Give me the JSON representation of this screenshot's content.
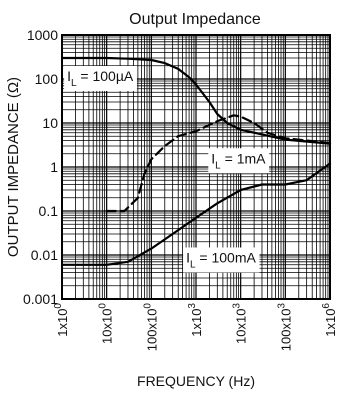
{
  "chart_data": {
    "type": "line",
    "title": "Output Impedance",
    "xlabel": "FREQUENCY (Hz)",
    "ylabel": "OUTPUT IMPEDANCE (Ω)",
    "x_scale": "log",
    "y_scale": "log",
    "xlim": [
      1,
      1000000
    ],
    "ylim": [
      0.001,
      1000
    ],
    "grid": true,
    "x_ticks": [
      {
        "value": 1,
        "base": "1x10",
        "exp": "0"
      },
      {
        "value": 10,
        "base": "10x10",
        "exp": "0"
      },
      {
        "value": 100,
        "base": "100x10",
        "exp": "0"
      },
      {
        "value": 1000,
        "base": "1x10",
        "exp": "3"
      },
      {
        "value": 10000,
        "base": "10x10",
        "exp": "3"
      },
      {
        "value": 100000,
        "base": "100x10",
        "exp": "3"
      },
      {
        "value": 1000000,
        "base": "1x10",
        "exp": "6"
      }
    ],
    "y_ticks": [
      {
        "value": 1000,
        "label": "1000"
      },
      {
        "value": 100,
        "label": "100"
      },
      {
        "value": 10,
        "label": "10"
      },
      {
        "value": 1,
        "label": "1"
      },
      {
        "value": 0.1,
        "label": "0.1"
      },
      {
        "value": 0.01,
        "label": "0.01"
      },
      {
        "value": 0.001,
        "label": "0.001"
      }
    ],
    "series": [
      {
        "name": "I_L = 100µA",
        "dash": false,
        "x": [
          1,
          10,
          30,
          100,
          200,
          400,
          700,
          1000,
          2000,
          3000,
          5000,
          10000,
          30000,
          100000,
          1000000
        ],
        "y": [
          300,
          300,
          290,
          270,
          230,
          170,
          110,
          75,
          30,
          16,
          10,
          7,
          5.5,
          4.2,
          3.4
        ]
      },
      {
        "name": "I_L = 1mA",
        "dash": true,
        "x": [
          10,
          25,
          50,
          70,
          100,
          200,
          400,
          1000,
          3000,
          7000,
          10000,
          20000,
          40000,
          100000,
          300000,
          1000000
        ],
        "y": [
          0.1,
          0.1,
          0.2,
          0.7,
          1.5,
          3,
          5,
          6.5,
          11,
          15,
          14,
          10,
          6,
          4.5,
          4,
          3.5
        ]
      },
      {
        "name": "I_L = 100mA",
        "dash": false,
        "x": [
          1,
          10,
          30,
          100,
          300,
          1000,
          3000,
          10000,
          30000,
          100000,
          300000,
          1000000
        ],
        "y": [
          0.006,
          0.006,
          0.007,
          0.014,
          0.03,
          0.07,
          0.15,
          0.3,
          0.4,
          0.4,
          0.5,
          1.2
        ]
      }
    ],
    "annotations": [
      {
        "series": 0,
        "sub": "L",
        "value": " = 100µA",
        "at_x": 1.3,
        "at_y": 100
      },
      {
        "series": 1,
        "sub": "L",
        "value": " = 1mA",
        "at_x": 2200,
        "at_y": 1.35
      },
      {
        "series": 2,
        "sub": "L",
        "value": " = 100mA",
        "at_x": 600,
        "at_y": 0.0075
      }
    ]
  }
}
